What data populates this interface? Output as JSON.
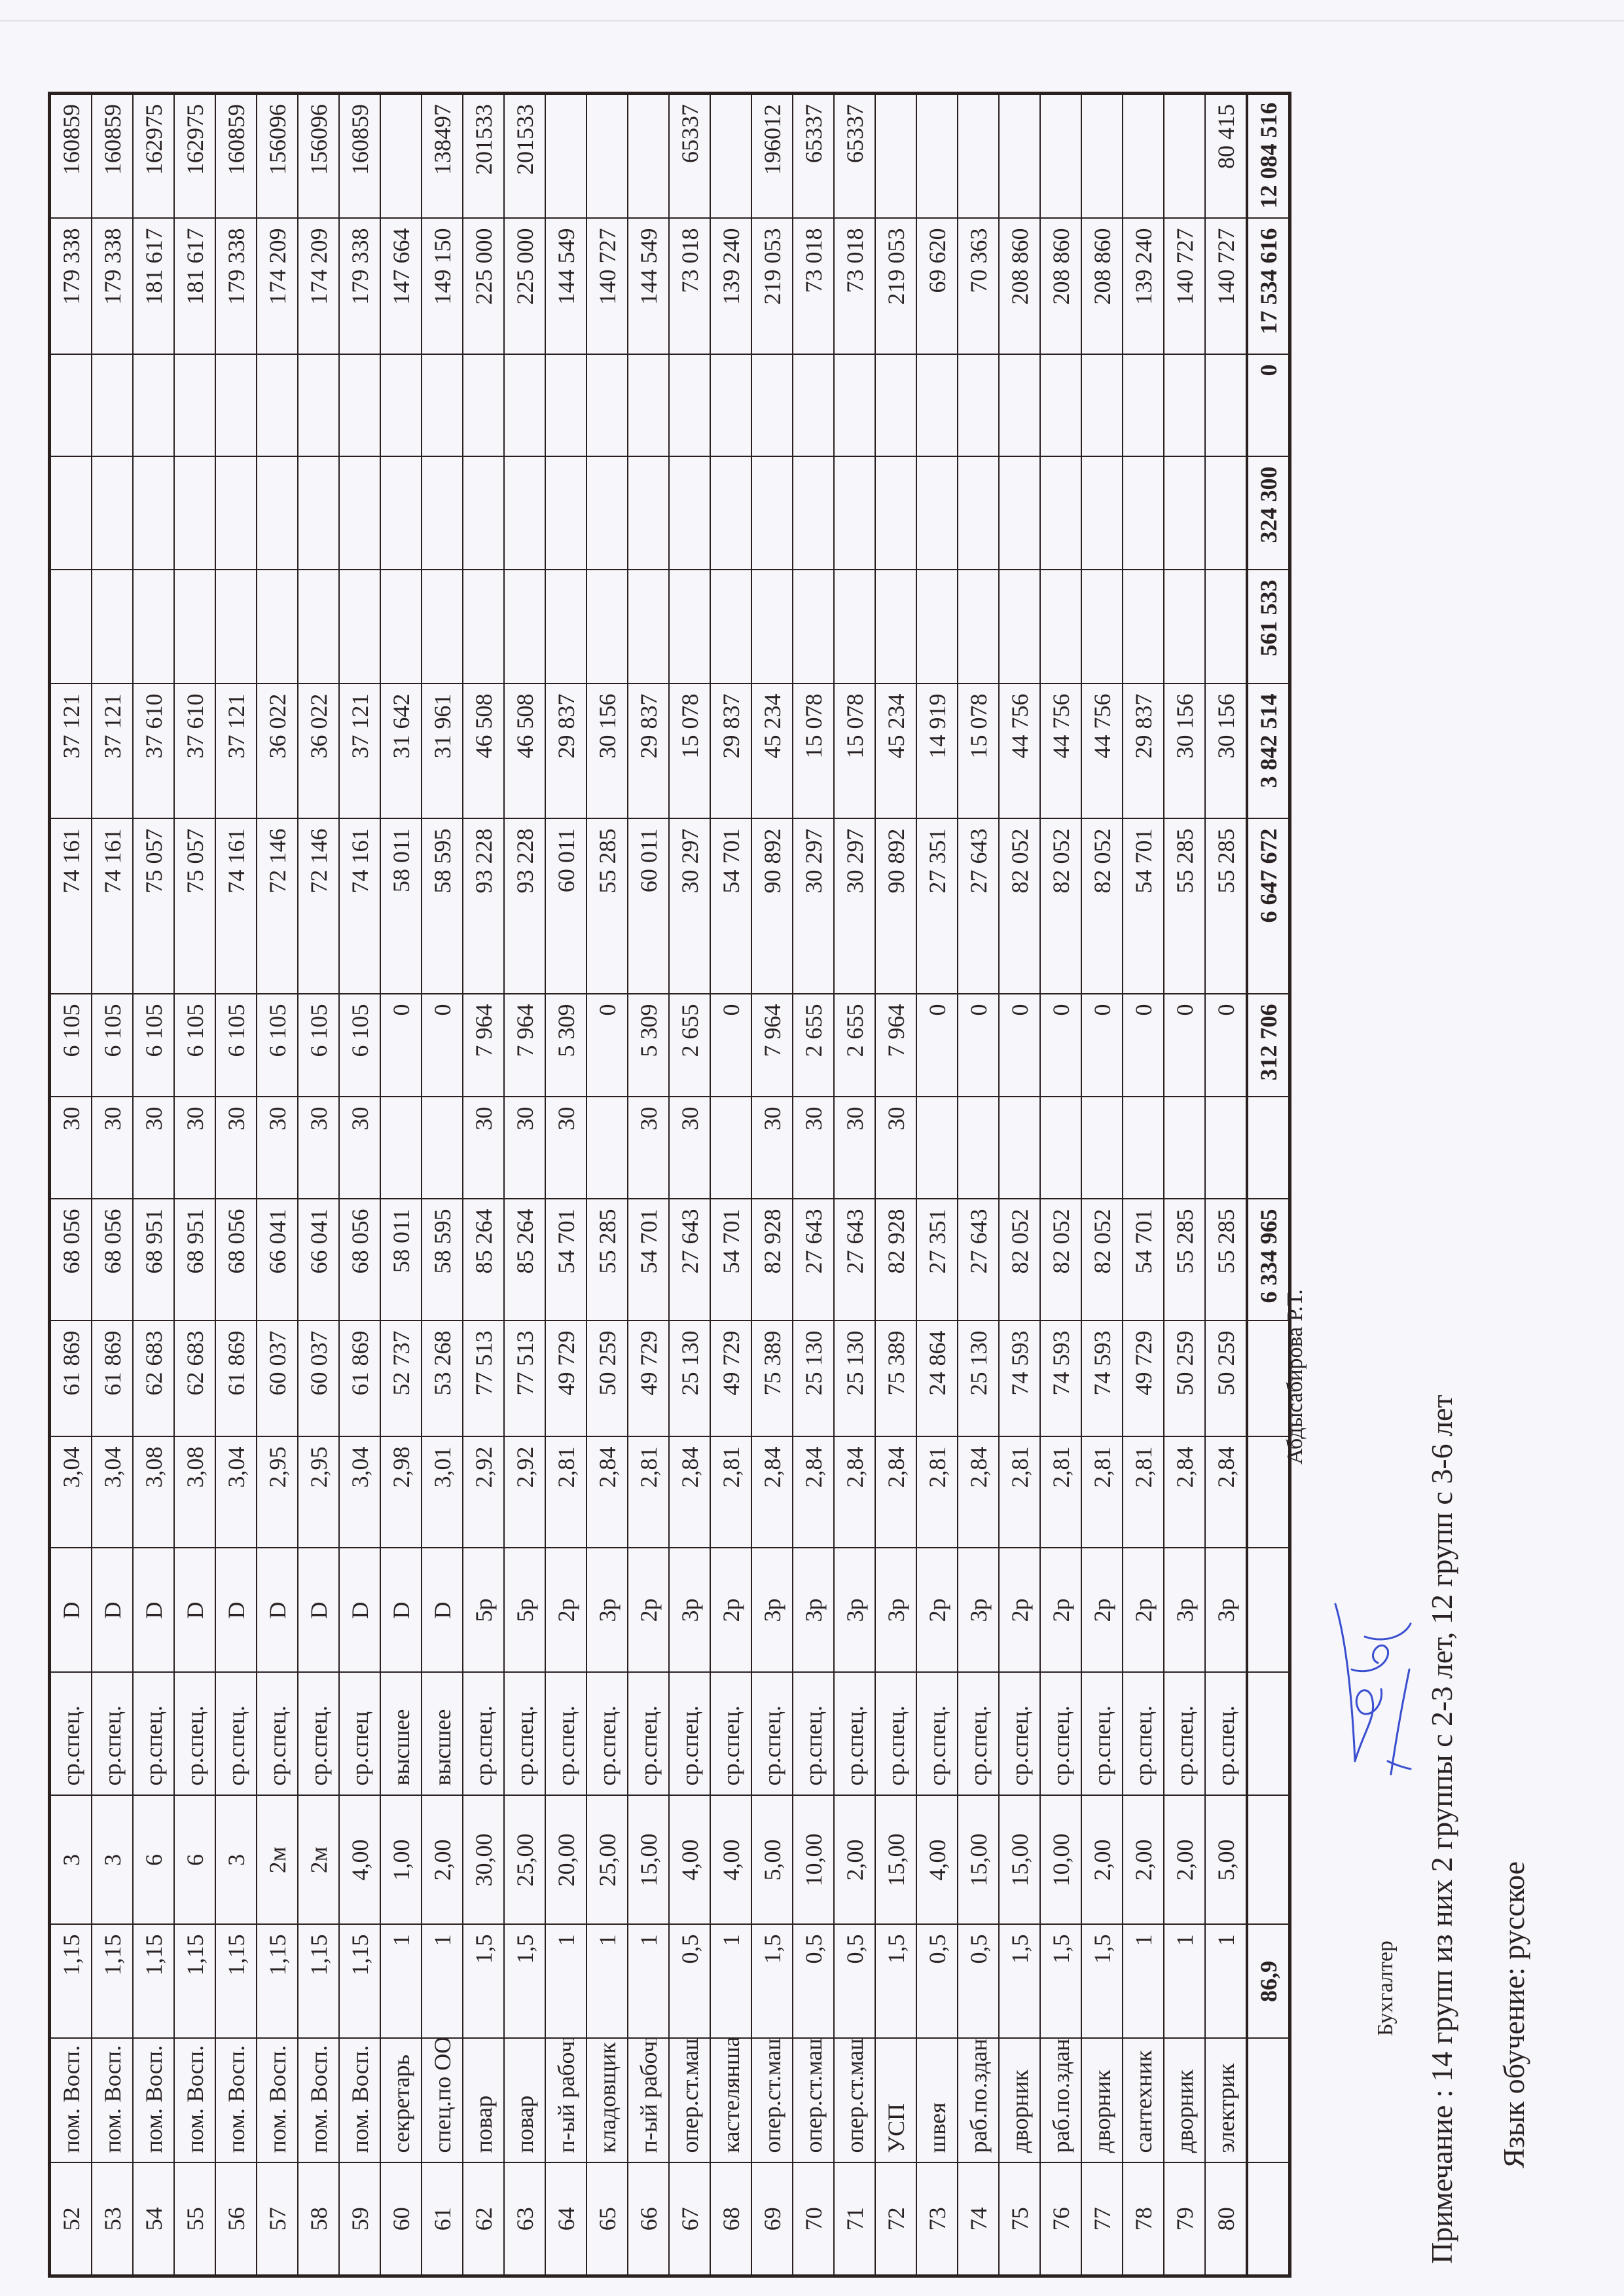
{
  "table": {
    "align": [
      "c",
      "l",
      "r",
      "c",
      "l",
      "c",
      "r",
      "r",
      "r",
      "r",
      "r",
      "r",
      "r",
      "r",
      "r",
      "r",
      "r",
      "r"
    ],
    "rows": [
      [
        "52",
        "пом. Восп.",
        "1,15",
        "3",
        "ср.спец.",
        "D",
        "3,04",
        "61 869",
        "68 056",
        "30",
        "6 105",
        "74 161",
        "37 121",
        "",
        "",
        "",
        "179 338",
        "160859"
      ],
      [
        "53",
        "пом. Восп.",
        "1,15",
        "3",
        "ср.спец.",
        "D",
        "3,04",
        "61 869",
        "68 056",
        "30",
        "6 105",
        "74 161",
        "37 121",
        "",
        "",
        "",
        "179 338",
        "160859"
      ],
      [
        "54",
        "пом. Восп.",
        "1,15",
        "6",
        "ср.спец.",
        "D",
        "3,08",
        "62 683",
        "68 951",
        "30",
        "6 105",
        "75 057",
        "37 610",
        "",
        "",
        "",
        "181 617",
        "162975"
      ],
      [
        "55",
        "пом. Восп.",
        "1,15",
        "6",
        "ср.спец.",
        "D",
        "3,08",
        "62 683",
        "68 951",
        "30",
        "6 105",
        "75 057",
        "37 610",
        "",
        "",
        "",
        "181 617",
        "162975"
      ],
      [
        "56",
        "пом. Восп.",
        "1,15",
        "3",
        "ср.спец.",
        "D",
        "3,04",
        "61 869",
        "68 056",
        "30",
        "6 105",
        "74 161",
        "37 121",
        "",
        "",
        "",
        "179 338",
        "160859"
      ],
      [
        "57",
        "пом. Восп.",
        "1,15",
        "2м",
        "ср.спец.",
        "D",
        "2,95",
        "60 037",
        "66 041",
        "30",
        "6 105",
        "72 146",
        "36 022",
        "",
        "",
        "",
        "174 209",
        "156096"
      ],
      [
        "58",
        "пом. Восп.",
        "1,15",
        "2м",
        "ср.спец.",
        "D",
        "2,95",
        "60 037",
        "66 041",
        "30",
        "6 105",
        "72 146",
        "36 022",
        "",
        "",
        "",
        "174 209",
        "156096"
      ],
      [
        "59",
        "пом. Восп.",
        "1,15",
        "4,00",
        "ср.спец",
        "D",
        "3,04",
        "61 869",
        "68 056",
        "30",
        "6 105",
        "74 161",
        "37 121",
        "",
        "",
        "",
        "179 338",
        "160859"
      ],
      [
        "60",
        "секретарь",
        "1",
        "1,00",
        "высшее",
        "D",
        "2,98",
        "52 737",
        "58 011",
        "",
        "0",
        "58 011",
        "31 642",
        "",
        "",
        "",
        "147 664",
        ""
      ],
      [
        "61",
        "спец.по ООТ",
        "1",
        "2,00",
        "высшее",
        "D",
        "3,01",
        "53 268",
        "58 595",
        "",
        "0",
        "58 595",
        "31 961",
        "",
        "",
        "",
        "149 150",
        "138497"
      ],
      [
        "62",
        "повар",
        "1,5",
        "30,00",
        "ср.спец.",
        "5р",
        "2,92",
        "77 513",
        "85 264",
        "30",
        "7 964",
        "93 228",
        "46 508",
        "",
        "",
        "",
        "225 000",
        "201533"
      ],
      [
        "63",
        "повар",
        "1,5",
        "25,00",
        "ср.спец.",
        "5р",
        "2,92",
        "77 513",
        "85 264",
        "30",
        "7 964",
        "93 228",
        "46 508",
        "",
        "",
        "",
        "225 000",
        "201533"
      ],
      [
        "64",
        "п-ый рабочий",
        "1",
        "20,00",
        "ср.спец.",
        "2р",
        "2,81",
        "49 729",
        "54 701",
        "30",
        "5 309",
        "60 011",
        "29 837",
        "",
        "",
        "",
        "144 549",
        ""
      ],
      [
        "65",
        "кладовщик",
        "1",
        "25,00",
        "ср.спец.",
        "3р",
        "2,84",
        "50 259",
        "55 285",
        "",
        "0",
        "55 285",
        "30 156",
        "",
        "",
        "",
        "140 727",
        ""
      ],
      [
        "66",
        "п-ый рабочий",
        "1",
        "15,00",
        "ср.спец.",
        "2р",
        "2,81",
        "49 729",
        "54 701",
        "30",
        "5 309",
        "60 011",
        "29 837",
        "",
        "",
        "",
        "144 549",
        ""
      ],
      [
        "67",
        "опер.ст.маш.",
        "0,5",
        "4,00",
        "ср.спец.",
        "3р",
        "2,84",
        "25 130",
        "27 643",
        "30",
        "2 655",
        "30 297",
        "15 078",
        "",
        "",
        "",
        "73 018",
        "65337"
      ],
      [
        "68",
        "кастелянша",
        "1",
        "4,00",
        "ср.спец.",
        "2р",
        "2,81",
        "49 729",
        "54 701",
        "",
        "0",
        "54 701",
        "29 837",
        "",
        "",
        "",
        "139 240",
        ""
      ],
      [
        "69",
        "опер.ст.маш.",
        "1,5",
        "5,00",
        "ср.спец.",
        "3р",
        "2,84",
        "75 389",
        "82 928",
        "30",
        "7 964",
        "90 892",
        "45 234",
        "",
        "",
        "",
        "219 053",
        "196012"
      ],
      [
        "70",
        "опер.ст.маш.",
        "0,5",
        "10,00",
        "ср.спец.",
        "3р",
        "2,84",
        "25 130",
        "27 643",
        "30",
        "2 655",
        "30 297",
        "15 078",
        "",
        "",
        "",
        "73 018",
        "65337"
      ],
      [
        "71",
        "опер.ст.маш.",
        "0,5",
        "2,00",
        "ср.спец.",
        "3р",
        "2,84",
        "25 130",
        "27 643",
        "30",
        "2 655",
        "30 297",
        "15 078",
        "",
        "",
        "",
        "73 018",
        "65337"
      ],
      [
        "72",
        "УСП",
        "1,5",
        "15,00",
        "ср.спец.",
        "3р",
        "2,84",
        "75 389",
        "82 928",
        "30",
        "7 964",
        "90 892",
        "45 234",
        "",
        "",
        "",
        "219 053",
        ""
      ],
      [
        "73",
        "швея",
        "0,5",
        "4,00",
        "ср.спец.",
        "2р",
        "2,81",
        "24 864",
        "27 351",
        "",
        "0",
        "27 351",
        "14 919",
        "",
        "",
        "",
        "69 620",
        ""
      ],
      [
        "74",
        "раб.по.здан",
        "0,5",
        "15,00",
        "ср.спец.",
        "3р",
        "2,84",
        "25 130",
        "27 643",
        "",
        "0",
        "27 643",
        "15 078",
        "",
        "",
        "",
        "70 363",
        ""
      ],
      [
        "75",
        "дворник",
        "1,5",
        "15,00",
        "ср.спец.",
        "2р",
        "2,81",
        "74 593",
        "82 052",
        "",
        "0",
        "82 052",
        "44 756",
        "",
        "",
        "",
        "208 860",
        ""
      ],
      [
        "76",
        "раб.по.здан",
        "1,5",
        "10,00",
        "ср.спец.",
        "2р",
        "2,81",
        "74 593",
        "82 052",
        "",
        "0",
        "82 052",
        "44 756",
        "",
        "",
        "",
        "208 860",
        ""
      ],
      [
        "77",
        "дворник",
        "1,5",
        "2,00",
        "ср.спец.",
        "2р",
        "2,81",
        "74 593",
        "82 052",
        "",
        "0",
        "82 052",
        "44 756",
        "",
        "",
        "",
        "208 860",
        ""
      ],
      [
        "78",
        "сантехник",
        "1",
        "2,00",
        "ср.спец.",
        "2р",
        "2,81",
        "49 729",
        "54 701",
        "",
        "0",
        "54 701",
        "29 837",
        "",
        "",
        "",
        "139 240",
        ""
      ],
      [
        "79",
        "дворник",
        "1",
        "2,00",
        "ср.спец.",
        "3р",
        "2,84",
        "50 259",
        "55 285",
        "",
        "0",
        "55 285",
        "30 156",
        "",
        "",
        "",
        "140 727",
        ""
      ],
      [
        "80",
        "электрик",
        "1",
        "5,00",
        "ср.спец.",
        "3р",
        "2,84",
        "50 259",
        "55 285",
        "",
        "0",
        "55 285",
        "30 156",
        "",
        "",
        "",
        "140 727",
        "80 415"
      ]
    ],
    "total": [
      "",
      "",
      "86,9",
      "",
      "",
      "",
      "",
      "",
      "6 334 965",
      "",
      "312 706",
      "6 647 672",
      "3 842 514",
      "561 533",
      "324 300",
      "0",
      "17 534 616",
      "12 084 516"
    ]
  },
  "footer": {
    "accountant_label": "Бухгалтер",
    "accountant_name": "Абдысабирова Р.Т.",
    "signature_color": "#3a4fd0",
    "note": "Примечание : 14 групп из них 2 группы с 2-3 лет, 12 групп с 3-6 лет",
    "language": "Язык обучение: русское"
  }
}
